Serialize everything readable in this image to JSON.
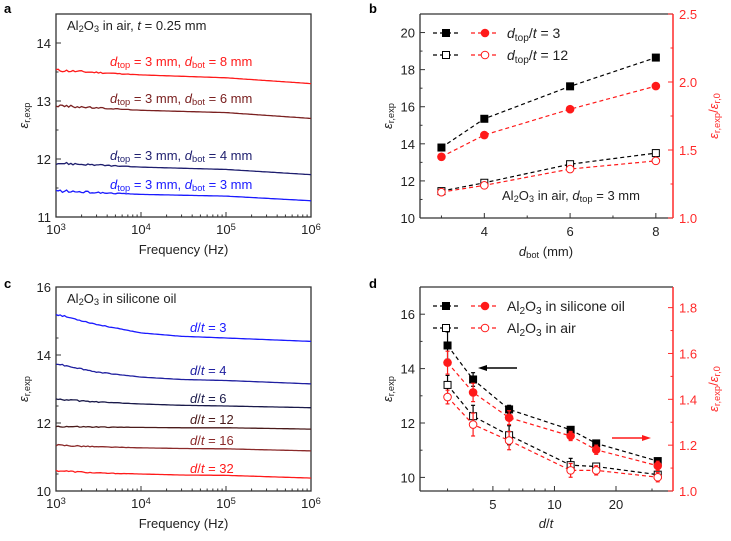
{
  "figure": {
    "panels": [
      "a",
      "b",
      "c",
      "d"
    ]
  },
  "colors": {
    "red": "#ff1a1a",
    "darkred": "#8b2a2a",
    "brown": "#6b1e1e",
    "navy": "#1e1e78",
    "blue": "#1a1aff",
    "darknavy": "#1a1a4a",
    "black": "#000000"
  },
  "chart_data": [
    {
      "panel": "a",
      "type": "line",
      "title": "",
      "annotation": "Al2O3 in air, t = 0.25 mm",
      "xlabel": "Frequency (Hz)",
      "ylabel": "ε r,exp",
      "xscale": "log",
      "xlim": [
        1000,
        1000000
      ],
      "ylim": [
        11,
        14.5
      ],
      "xticks": [
        "10^3",
        "10^4",
        "10^5",
        "10^6"
      ],
      "yticks": [
        11,
        12,
        13,
        14
      ],
      "series": [
        {
          "name": "d_top = 3 mm, d_bot = 8 mm",
          "color": "#ff1a1a",
          "x": [
            1000,
            10000,
            100000,
            1000000
          ],
          "y": [
            13.53,
            13.45,
            13.4,
            13.3
          ]
        },
        {
          "name": "d_top = 3 mm, d_bot = 6 mm",
          "color": "#7a2020",
          "x": [
            1000,
            10000,
            100000,
            1000000
          ],
          "y": [
            12.92,
            12.84,
            12.8,
            12.7
          ]
        },
        {
          "name": "d_top = 3 mm, d_bot = 4 mm",
          "color": "#1e1e6e",
          "x": [
            1000,
            10000,
            100000,
            1000000
          ],
          "y": [
            11.93,
            11.86,
            11.82,
            11.73
          ]
        },
        {
          "name": "d_top = 3 mm, d_bot = 3 mm",
          "color": "#1a1aff",
          "x": [
            1000,
            10000,
            100000,
            1000000
          ],
          "y": [
            11.45,
            11.39,
            11.36,
            11.28
          ]
        }
      ]
    },
    {
      "panel": "b",
      "type": "line",
      "annotation": "Al2O3 in air, d_top = 3 mm",
      "xlabel": "d_bot (mm)",
      "ylabel": "ε r,exp",
      "ylabel_right": "ε r,exp / ε r,0",
      "xlim": [
        2.5,
        8.4
      ],
      "ylim": [
        10,
        21
      ],
      "ylim_right": [
        1.0,
        2.5
      ],
      "xticks": [
        4,
        6,
        8
      ],
      "yticks": [
        10,
        12,
        14,
        16,
        18,
        20
      ],
      "yticks_right": [
        1.0,
        1.5,
        2.0,
        2.5
      ],
      "legend": [
        "d_top/t = 3",
        "d_top/t = 12"
      ],
      "legend_position": "top-left",
      "x": [
        3,
        4,
        6,
        8
      ],
      "series": [
        {
          "name": "d_top/t = 3 (ε)",
          "axis": "left",
          "marker": "filled-square",
          "color": "#000000",
          "values": [
            13.8,
            15.35,
            17.1,
            18.65
          ]
        },
        {
          "name": "d_top/t = 12 (ε)",
          "axis": "left",
          "marker": "open-square",
          "color": "#000000",
          "values": [
            11.45,
            11.9,
            12.9,
            13.5
          ]
        },
        {
          "name": "d_top/t = 3 (ratio)",
          "axis": "right",
          "marker": "filled-circle",
          "color": "#ff1a1a",
          "values": [
            1.45,
            1.61,
            1.8,
            1.97
          ]
        },
        {
          "name": "d_top/t = 12 (ratio)",
          "axis": "right",
          "marker": "open-circle",
          "color": "#ff1a1a",
          "values": [
            1.19,
            1.24,
            1.36,
            1.42
          ]
        }
      ]
    },
    {
      "panel": "c",
      "type": "line",
      "annotation": "Al2O3 in silicone oil",
      "xlabel": "Frequency (Hz)",
      "ylabel": "ε r,exp",
      "xscale": "log",
      "xlim": [
        1000,
        1000000
      ],
      "ylim": [
        10,
        16
      ],
      "xticks": [
        "10^3",
        "10^4",
        "10^5",
        "10^6"
      ],
      "yticks": [
        10,
        12,
        14,
        16
      ],
      "series": [
        {
          "name": "d/t = 3",
          "color": "#1a1aff",
          "x": [
            1000,
            3000,
            10000,
            30000,
            100000,
            1000000
          ],
          "y": [
            15.2,
            14.9,
            14.65,
            14.55,
            14.5,
            14.4
          ]
        },
        {
          "name": "d/t = 4",
          "color": "#2020a0",
          "x": [
            1000,
            3000,
            10000,
            30000,
            100000,
            1000000
          ],
          "y": [
            13.75,
            13.5,
            13.35,
            13.28,
            13.25,
            13.15
          ]
        },
        {
          "name": "d/t = 6",
          "color": "#1a1a4a",
          "x": [
            1000,
            3000,
            10000,
            30000,
            100000,
            1000000
          ],
          "y": [
            12.7,
            12.62,
            12.56,
            12.52,
            12.5,
            12.45
          ]
        },
        {
          "name": "d/t = 12",
          "color": "#4a1a1a",
          "x": [
            1000,
            3000,
            10000,
            30000,
            100000,
            1000000
          ],
          "y": [
            11.9,
            11.88,
            11.87,
            11.86,
            11.86,
            11.82
          ]
        },
        {
          "name": "d/t = 16",
          "color": "#8b2a2a",
          "x": [
            1000,
            3000,
            10000,
            30000,
            100000,
            1000000
          ],
          "y": [
            11.35,
            11.3,
            11.27,
            11.25,
            11.24,
            11.18
          ]
        },
        {
          "name": "d/t = 32",
          "color": "#ff1a1a",
          "x": [
            1000,
            3000,
            10000,
            30000,
            100000,
            1000000
          ],
          "y": [
            10.6,
            10.53,
            10.5,
            10.47,
            10.46,
            10.38
          ]
        }
      ]
    },
    {
      "panel": "d",
      "type": "line",
      "xlabel": "d/t",
      "ylabel": "ε r,exp",
      "ylabel_right": "ε r,exp / ε r,0",
      "xscale": "log",
      "xlim": [
        2.2,
        38
      ],
      "ylim": [
        9.5,
        17
      ],
      "ylim_right": [
        1.0,
        1.89
      ],
      "xticks": [
        5,
        10,
        20
      ],
      "yticks": [
        10,
        12,
        14,
        16
      ],
      "yticks_right": [
        1.0,
        1.2,
        1.4,
        1.6,
        1.8
      ],
      "legend": [
        "Al2O3 in silicone oil",
        "Al2O3 in air"
      ],
      "legend_position": "top-left",
      "annotations": [
        "arrow pointing left (left axis)",
        "arrow pointing right (right axis)"
      ],
      "x": [
        3,
        4,
        6,
        12,
        16,
        32
      ],
      "series": [
        {
          "name": "Al2O3 in silicone oil (ε)",
          "axis": "left",
          "marker": "filled-square",
          "color": "#000000",
          "values": [
            14.85,
            13.6,
            12.5,
            11.75,
            11.25,
            10.6
          ],
          "err": [
            0.5,
            0.25,
            0.15,
            0.1,
            0.1,
            0.1
          ]
        },
        {
          "name": "Al2O3 in air (ε)",
          "axis": "left",
          "marker": "open-square",
          "color": "#000000",
          "values": [
            13.4,
            12.25,
            11.55,
            10.45,
            10.4,
            10.1
          ],
          "err": [
            0.35,
            0.4,
            0.35,
            0.25,
            0.1,
            0.1
          ]
        },
        {
          "name": "Al2O3 in silicone oil (ratio)",
          "axis": "right",
          "marker": "filled-circle",
          "color": "#ff1a1a",
          "values": [
            1.56,
            1.43,
            1.32,
            1.24,
            1.18,
            1.11
          ],
          "err": [
            0.05,
            0.04,
            0.03,
            0.02,
            0.02,
            0.02
          ]
        },
        {
          "name": "Al2O3 in air (ratio)",
          "axis": "right",
          "marker": "open-circle",
          "color": "#ff1a1a",
          "values": [
            1.41,
            1.29,
            1.22,
            1.09,
            1.09,
            1.06
          ],
          "err": [
            0.03,
            0.05,
            0.04,
            0.03,
            0.02,
            0.02
          ]
        }
      ]
    }
  ]
}
